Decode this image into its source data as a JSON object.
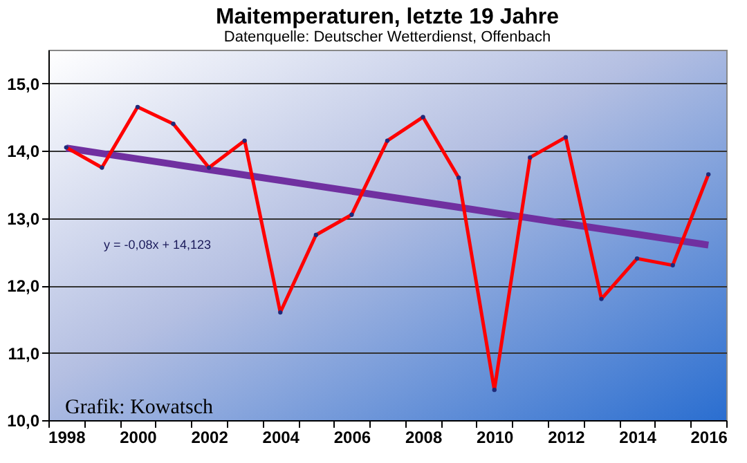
{
  "chart_data": {
    "type": "line",
    "title": "Maitemperaturen, letzte 19 Jahre",
    "subtitle": "Datenquelle: Deutscher Wetterdienst, Offenbach",
    "categories": [
      "1998",
      null,
      "2000",
      null,
      "2002",
      null,
      "2004",
      null,
      "2006",
      null,
      "2008",
      null,
      "2010",
      null,
      "2012",
      null,
      "2014",
      null,
      "2016"
    ],
    "series": [
      {
        "color": "#ff0000",
        "marker": "circle",
        "values": [
          14.05,
          13.75,
          14.65,
          14.4,
          13.75,
          14.15,
          11.6,
          12.75,
          13.05,
          14.15,
          14.5,
          13.6,
          10.45,
          13.9,
          14.2,
          11.8,
          12.4,
          12.3,
          13.65
        ]
      },
      {
        "type": "line",
        "color": "#7030a0",
        "values": [
          14.04,
          13.96,
          13.88,
          13.8,
          13.72,
          13.64,
          13.56,
          13.48,
          13.4,
          13.32,
          13.24,
          13.16,
          13.08,
          13.0,
          12.92,
          12.84,
          12.76,
          12.68,
          12.6
        ]
      }
    ],
    "ylim": [
      10,
      15.5
    ],
    "yticks": [
      {
        "value": 10,
        "label": "10,0"
      },
      {
        "value": 11,
        "label": "11,0"
      },
      {
        "value": 12,
        "label": "12,0"
      },
      {
        "value": 13,
        "label": "13,0"
      },
      {
        "value": 14,
        "label": "14,0"
      },
      {
        "value": 15,
        "label": "15,0"
      }
    ],
    "grid": "y",
    "line_style": "solid",
    "annotations": [
      "y = -0,08x + 14,123",
      "Grafik: Kowatsch"
    ]
  }
}
